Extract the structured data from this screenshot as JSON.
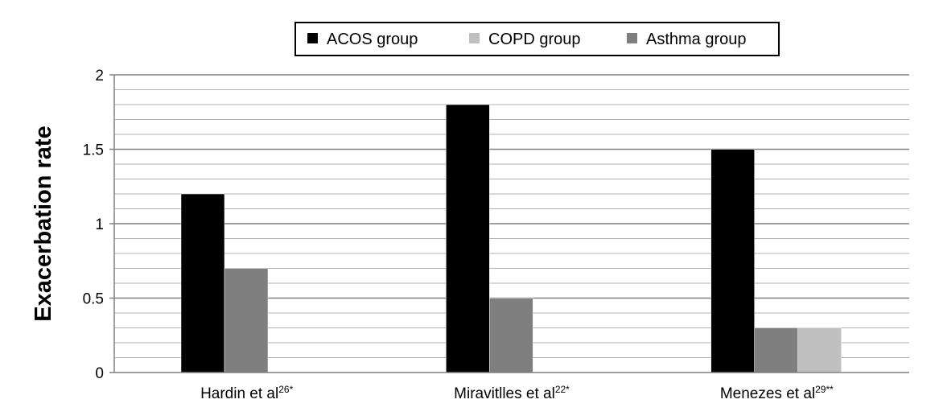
{
  "chart_data": {
    "type": "bar",
    "ylabel": "Exacerbation rate",
    "xlabel": "",
    "ylim": [
      0,
      2
    ],
    "y_ticks": [
      "0",
      "0.5",
      "1",
      "1.5",
      "2"
    ],
    "y_tick_values": [
      0,
      0.5,
      1,
      1.5,
      2
    ],
    "minor_grid_step": 0.1,
    "legend_position": "top-center",
    "categories": [
      {
        "label": "Hardin et al",
        "superscript": "26*"
      },
      {
        "label": "Miravitlles et al",
        "superscript": "22*"
      },
      {
        "label": "Menezes et al",
        "superscript": "29**"
      }
    ],
    "series": [
      {
        "name": "ACOS group",
        "color": "#000000",
        "values": [
          1.2,
          1.8,
          1.5
        ]
      },
      {
        "name": "COPD group",
        "color": "#c0c0c0",
        "values": [
          null,
          null,
          0.3
        ]
      },
      {
        "name": "Asthma group",
        "color": "#7f7f7f",
        "values": [
          0.7,
          0.5,
          0.3
        ]
      }
    ],
    "bar_order": [
      [
        "ACOS group",
        "Asthma group"
      ],
      [
        "ACOS group",
        "Asthma group"
      ],
      [
        "ACOS group",
        "Asthma group",
        "COPD group"
      ]
    ],
    "grid": true
  }
}
